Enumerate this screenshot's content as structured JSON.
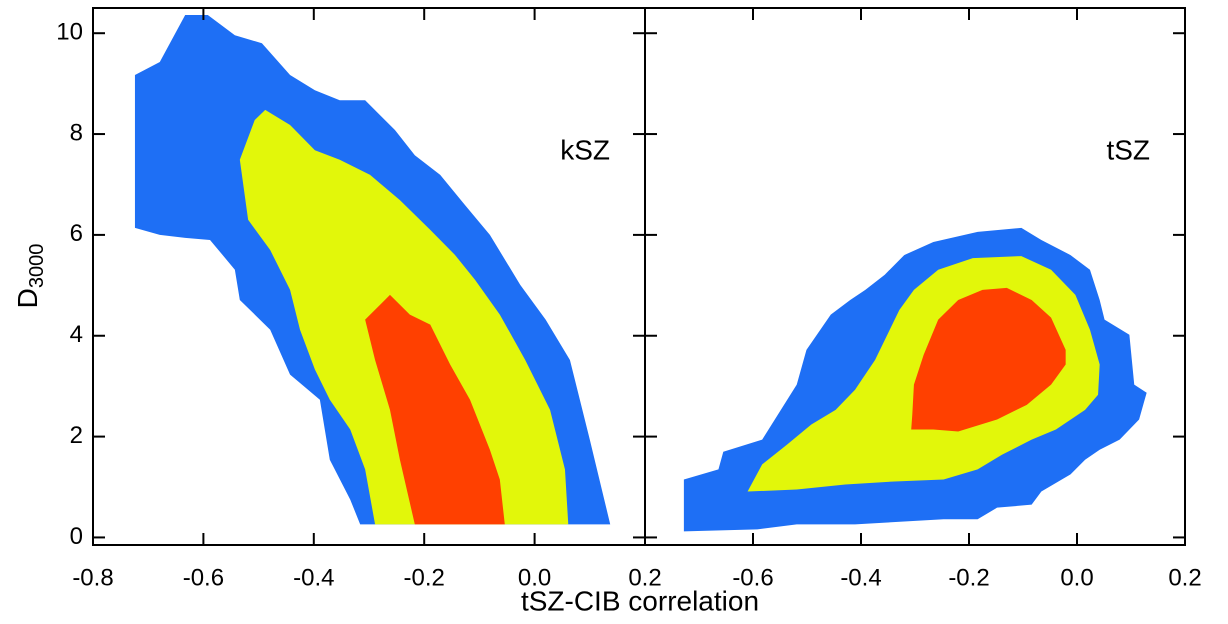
{
  "chart_data": [
    {
      "type": "contour",
      "annotation": "kSZ",
      "xlabel": "tSZ-CIB correlation",
      "ylabel": "D",
      "ylabel_sub": "3000",
      "xlim": [
        -0.8,
        0.2
      ],
      "xticks": [
        -0.8,
        -0.6,
        -0.4,
        -0.2,
        {
          "value": 0,
          "label": "0.0"
        },
        0.2
      ],
      "ylim": [
        -0.15,
        10.5
      ],
      "yticks": [
        0,
        2,
        4,
        6,
        8,
        10
      ],
      "series": [
        {
          "color": "#1e6ff5",
          "x": [
            -0.724,
            -0.679,
            -0.633,
            -0.592,
            -0.543,
            -0.494,
            -0.443,
            -0.398,
            -0.353,
            -0.307,
            -0.253,
            -0.217,
            -0.171,
            -0.126,
            -0.081,
            -0.026,
            0.02,
            0.064,
            0.1,
            0.137,
            -0.316,
            -0.334,
            -0.371,
            -0.389,
            -0.443,
            -0.479,
            -0.534,
            -0.543,
            -0.588,
            -0.633,
            -0.679,
            -0.724
          ],
          "values": [
            9.17,
            9.43,
            10.36,
            10.36,
            9.96,
            9.8,
            9.17,
            8.87,
            8.67,
            8.67,
            8.08,
            7.58,
            7.19,
            6.59,
            6.0,
            5.01,
            4.32,
            3.52,
            1.94,
            0.26,
            0.26,
            0.75,
            1.54,
            2.73,
            3.23,
            4.12,
            4.71,
            5.31,
            5.9,
            5.94,
            6.0,
            6.14
          ]
        },
        {
          "color": "#e2f70a",
          "x": [
            -0.534,
            -0.507,
            -0.488,
            -0.443,
            -0.398,
            -0.353,
            -0.298,
            -0.244,
            -0.189,
            -0.144,
            -0.108,
            -0.063,
            -0.017,
            0.028,
            0.055,
            0.061,
            -0.289,
            -0.307,
            -0.334,
            -0.371,
            -0.398,
            -0.425,
            -0.443,
            -0.479,
            -0.519
          ],
          "values": [
            7.49,
            8.28,
            8.48,
            8.18,
            7.68,
            7.49,
            7.19,
            6.69,
            6.1,
            5.6,
            5.11,
            4.42,
            3.52,
            2.53,
            1.35,
            0.26,
            0.26,
            1.35,
            2.14,
            2.73,
            3.33,
            4.12,
            4.91,
            5.7,
            6.3
          ]
        },
        {
          "color": "#ff4000",
          "x": [
            -0.307,
            -0.262,
            -0.226,
            -0.189,
            -0.153,
            -0.117,
            -0.081,
            -0.063,
            -0.054,
            -0.217,
            -0.244,
            -0.262,
            -0.289
          ],
          "values": [
            4.32,
            4.81,
            4.42,
            4.22,
            3.43,
            2.73,
            1.74,
            1.15,
            0.26,
            0.26,
            1.54,
            2.53,
            3.52
          ]
        }
      ]
    },
    {
      "type": "contour",
      "annotation": "tSZ",
      "xlim": [
        -0.8,
        0.2
      ],
      "xticks": [
        -0.6,
        -0.4,
        -0.2,
        {
          "value": 0,
          "label": "0.0"
        },
        0.2
      ],
      "ylim": [
        -0.15,
        10.5
      ],
      "series": [
        {
          "color": "#1e6ff5",
          "x": [
            -0.728,
            -0.664,
            -0.655,
            -0.583,
            -0.519,
            -0.501,
            -0.456,
            -0.42,
            -0.392,
            -0.356,
            -0.32,
            -0.266,
            -0.184,
            -0.103,
            -0.066,
            -0.012,
            0.024,
            0.042,
            0.051,
            0.097,
            0.106,
            0.129,
            0.115,
            0.079,
            0.042,
            0.015,
            -0.012,
            -0.066,
            -0.084,
            -0.148,
            -0.184,
            -0.247,
            -0.411,
            -0.519,
            -0.592,
            -0.728
          ],
          "values": [
            1.15,
            1.35,
            1.7,
            1.94,
            3.03,
            3.72,
            4.42,
            4.71,
            4.91,
            5.21,
            5.6,
            5.86,
            6.06,
            6.14,
            5.9,
            5.6,
            5.31,
            4.71,
            4.32,
            4.02,
            3.03,
            2.87,
            2.34,
            1.94,
            1.74,
            1.54,
            1.25,
            0.91,
            0.65,
            0.59,
            0.36,
            0.36,
            0.26,
            0.26,
            0.16,
            0.12
          ]
        },
        {
          "color": "#e2f70a",
          "x": [
            -0.61,
            -0.583,
            -0.537,
            -0.492,
            -0.447,
            -0.411,
            -0.374,
            -0.329,
            -0.302,
            -0.257,
            -0.193,
            -0.103,
            -0.048,
            -0.003,
            0.024,
            0.042,
            0.039,
            0.015,
            -0.039,
            -0.084,
            -0.139,
            -0.184,
            -0.247,
            -0.338,
            -0.429,
            -0.519
          ],
          "values": [
            0.91,
            1.45,
            1.84,
            2.24,
            2.53,
            2.93,
            3.52,
            4.51,
            4.91,
            5.31,
            5.54,
            5.58,
            5.31,
            4.81,
            4.12,
            3.43,
            2.83,
            2.53,
            2.14,
            1.94,
            1.64,
            1.35,
            1.15,
            1.11,
            1.05,
            0.95
          ]
        },
        {
          "color": "#ff4000",
          "x": [
            -0.305,
            -0.302,
            -0.284,
            -0.257,
            -0.22,
            -0.175,
            -0.13,
            -0.084,
            -0.048,
            -0.021,
            -0.021,
            -0.048,
            -0.093,
            -0.148,
            -0.22,
            -0.266,
            -0.307
          ],
          "values": [
            2.44,
            3.03,
            3.62,
            4.32,
            4.71,
            4.91,
            4.95,
            4.71,
            4.36,
            3.72,
            3.43,
            3.03,
            2.63,
            2.34,
            2.1,
            2.14,
            2.14
          ]
        }
      ]
    }
  ]
}
